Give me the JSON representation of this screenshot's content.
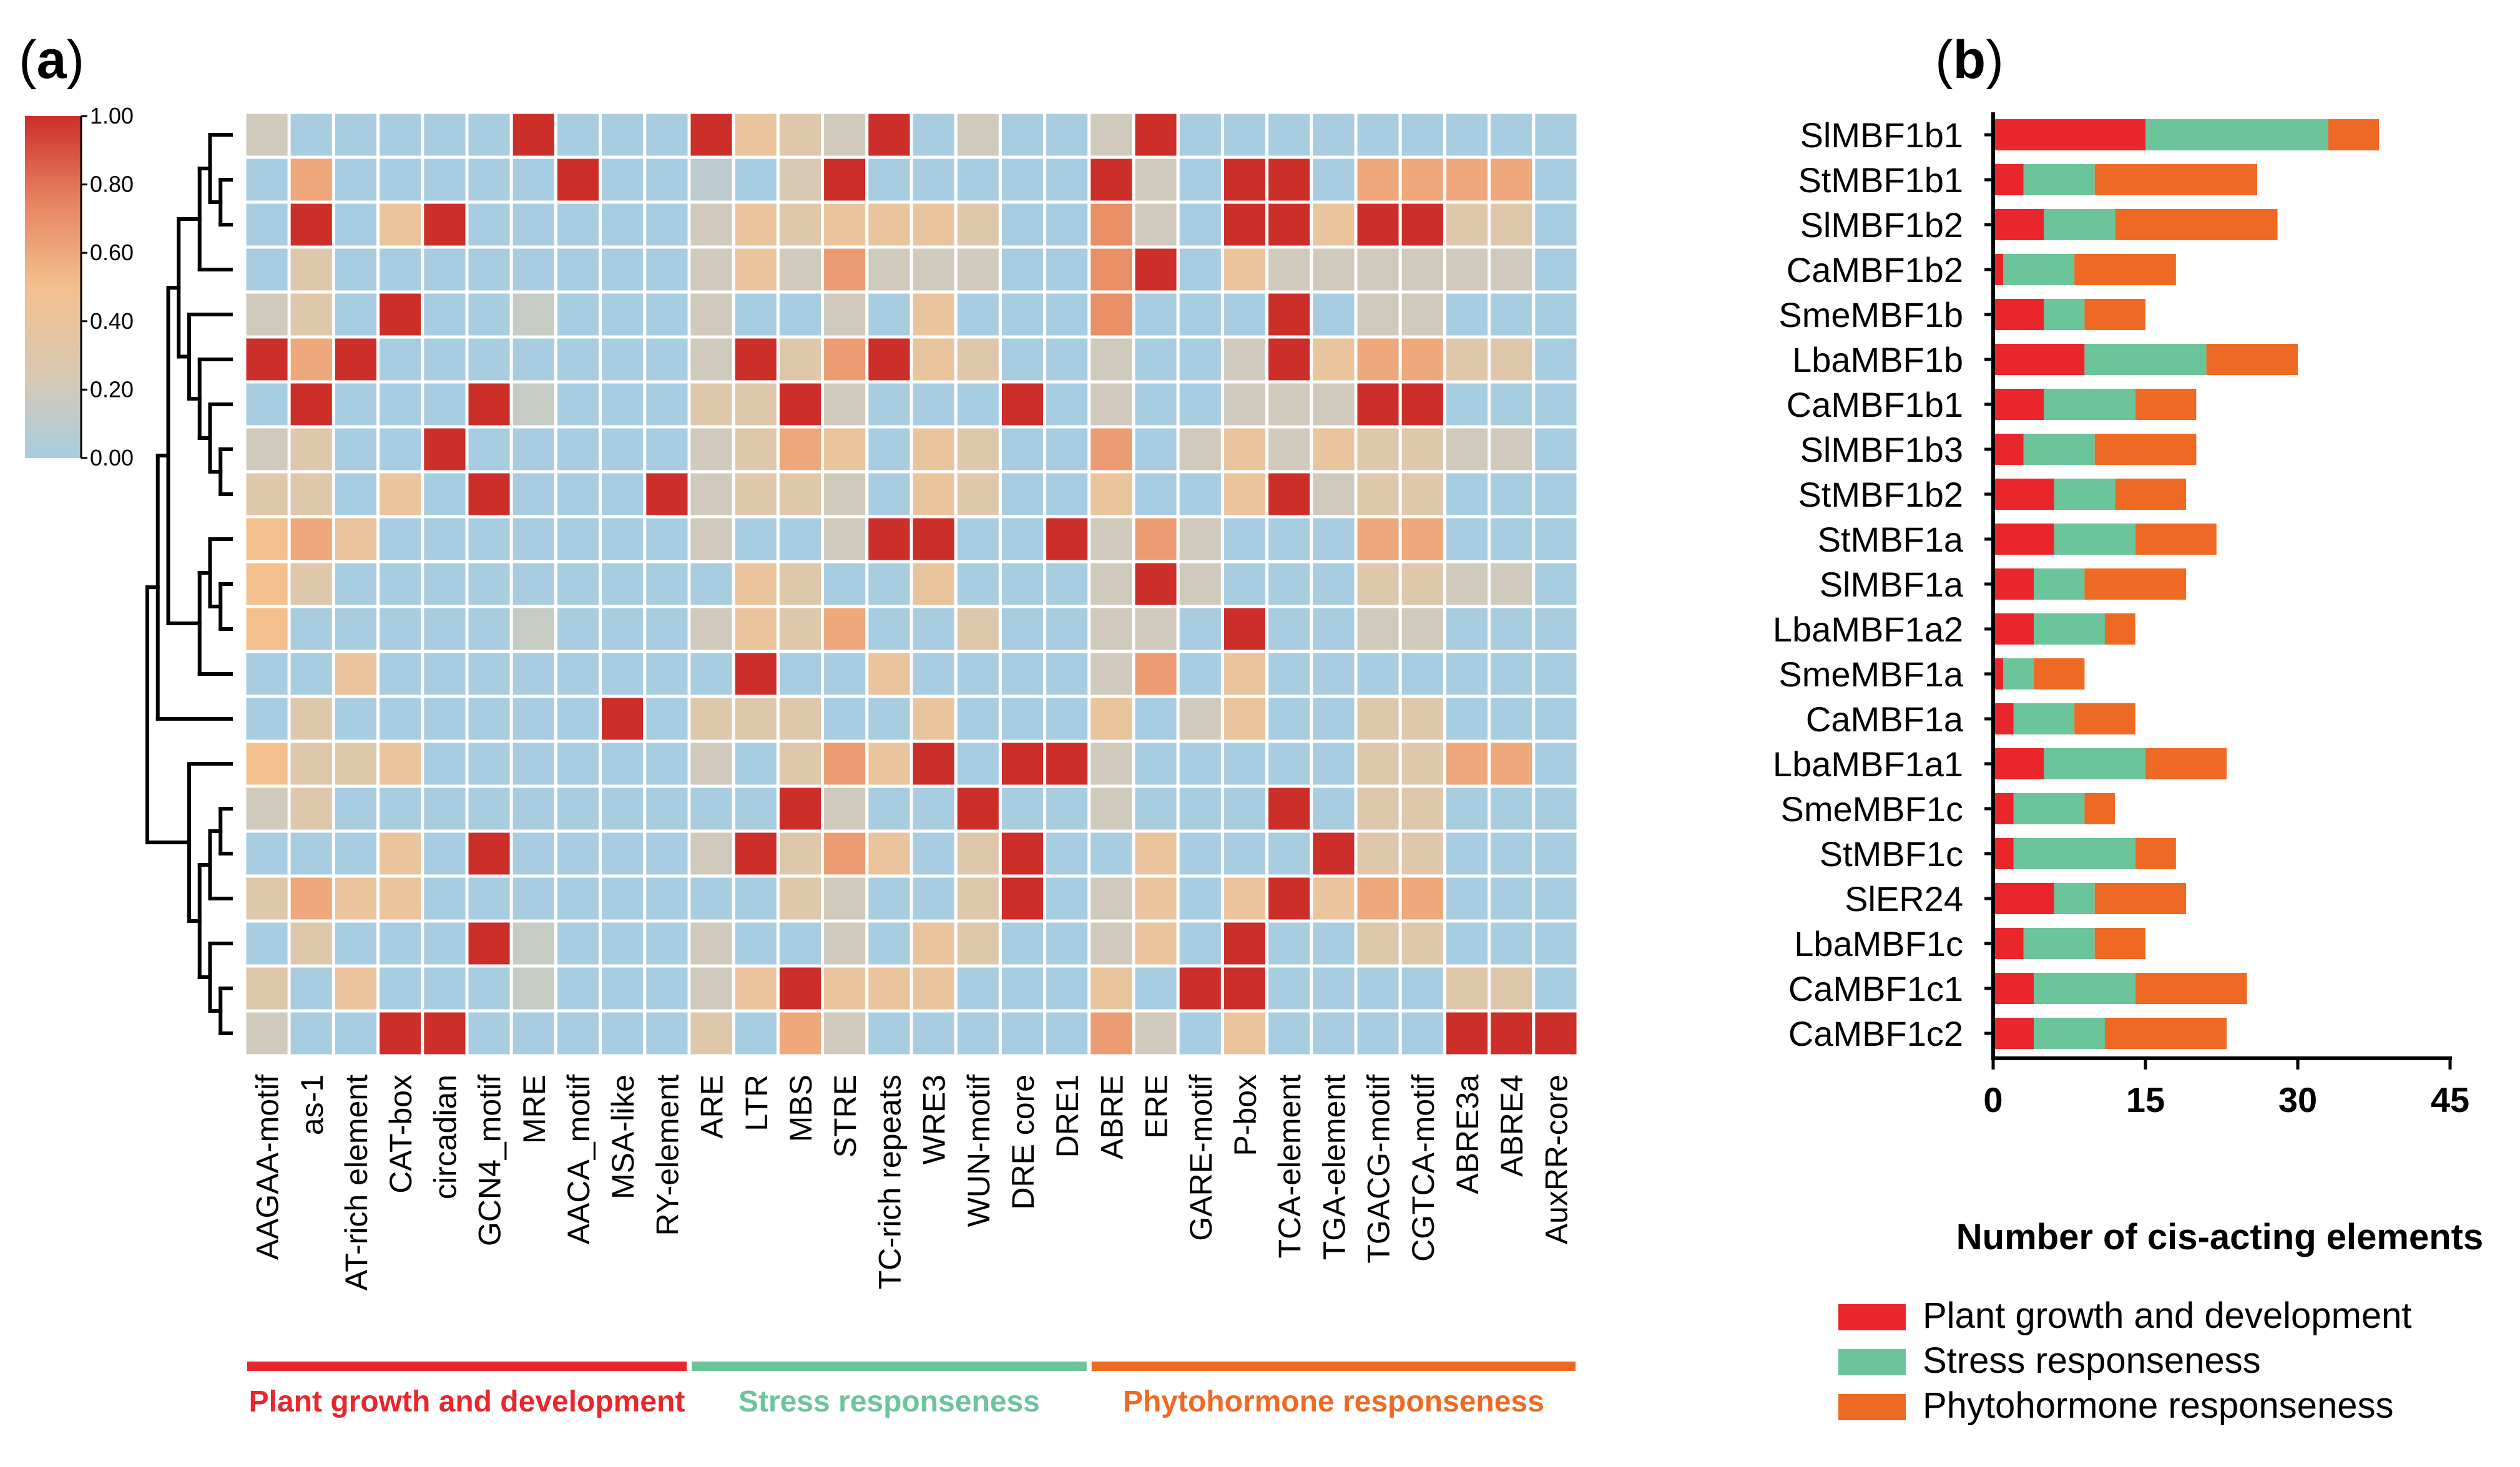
{
  "panels": {
    "a": "a",
    "b": "b"
  },
  "chart_data": [
    {
      "type": "heatmap",
      "title": "",
      "colorbar": {
        "ticks": [
          "1.00",
          "0.80",
          "0.60",
          "0.40",
          "0.20",
          "0.00"
        ],
        "range": [
          0,
          1
        ],
        "colors": [
          "#a9cde0",
          "#d9c9b2",
          "#f3c08d",
          "#e68460",
          "#cc2e2a"
        ]
      },
      "rows": [
        "SlMBF1b1",
        "StMBF1b1",
        "SlMBF1b2",
        "CaMBF1b2",
        "SmeMBF1b",
        "LbaMBF1b",
        "CaMBF1b1",
        "SlMBF1b3",
        "StMBF1b2",
        "StMBF1a",
        "SlMBF1a",
        "LbaMBF1a2",
        "SmeMBF1a",
        "CaMBF1a",
        "LbaMBF1a1",
        "SmeMBF1c",
        "StMBF1c",
        "SlER24",
        "LbaMBF1c",
        "CaMBF1c1",
        "CaMBF1c2"
      ],
      "columns": [
        "AAGAA-motif",
        "as-1",
        "AT-rich element",
        "CAT-box",
        "circadian",
        "GCN4_motif",
        "MRE",
        "AACA_motif",
        "MSA-like",
        "RY-element",
        "ARE",
        "LTR",
        "MBS",
        "STRE",
        "TC-rich repeats",
        "WRE3",
        "WUN-motif",
        "DRE core",
        "DRE1",
        "ABRE",
        "ERE",
        "GARE-motif",
        "P-box",
        "TCA-element",
        "TGA-element",
        "TGACG-motif",
        "CGTCA-motif",
        "ABRE3a",
        "ABRE4",
        "AuxRR-core"
      ],
      "groups": [
        {
          "name": "Plant growth and development",
          "start": 0,
          "end": 9,
          "color": "#e8262b"
        },
        {
          "name": "Stress responseness",
          "start": 10,
          "end": 18,
          "color": "#6cc49b"
        },
        {
          "name": "Phytohormone responseness",
          "start": 19,
          "end": 29,
          "color": "#ee6a24"
        }
      ],
      "values": [
        [
          0.2,
          0,
          0,
          0,
          0,
          0,
          1,
          0,
          0,
          0,
          1,
          0.4,
          0.3,
          0.2,
          1,
          0,
          0.2,
          0,
          0,
          0.2,
          1,
          0,
          0,
          0,
          0,
          0,
          0,
          0,
          0,
          0
        ],
        [
          0,
          0.6,
          0,
          0,
          0,
          0,
          0,
          1,
          0,
          0,
          0.1,
          0,
          0.25,
          1,
          0,
          0,
          0,
          0,
          0,
          1,
          0.2,
          0,
          1,
          1,
          0,
          0.6,
          0.6,
          0.6,
          0.6,
          0
        ],
        [
          0,
          1,
          0,
          0.4,
          1,
          0,
          0,
          0,
          0,
          0,
          0.2,
          0.4,
          0.3,
          0.4,
          0.4,
          0.4,
          0.3,
          0,
          0,
          0.7,
          0.2,
          0,
          1,
          1,
          0.4,
          1,
          1,
          0.3,
          0.3,
          0
        ],
        [
          0,
          0.3,
          0,
          0,
          0,
          0,
          0,
          0,
          0,
          0,
          0.2,
          0.4,
          0.2,
          0.65,
          0.2,
          0.2,
          0.2,
          0,
          0,
          0.7,
          1,
          0,
          0.4,
          0.2,
          0.2,
          0.2,
          0.2,
          0.2,
          0.2,
          0
        ],
        [
          0.2,
          0.3,
          0,
          1,
          0,
          0,
          0.15,
          0,
          0,
          0,
          0.2,
          0,
          0,
          0.2,
          0,
          0.4,
          0,
          0,
          0,
          0.7,
          0,
          0,
          0,
          1,
          0,
          0.2,
          0.2,
          0,
          0,
          0
        ],
        [
          1,
          0.6,
          1,
          0,
          0,
          0,
          0,
          0,
          0,
          0,
          0.2,
          1,
          0.3,
          0.65,
          1,
          0.4,
          0.3,
          0,
          0,
          0.2,
          0,
          0,
          0.2,
          1,
          0.4,
          0.6,
          0.6,
          0.3,
          0.3,
          0
        ],
        [
          0,
          1,
          0,
          0,
          0,
          1,
          0.15,
          0,
          0,
          0,
          0.3,
          0.3,
          1,
          0.2,
          0,
          0,
          0,
          1,
          0,
          0.2,
          0,
          0,
          0.2,
          0.2,
          0.2,
          1,
          1,
          0,
          0,
          0
        ],
        [
          0.2,
          0.3,
          0,
          0,
          1,
          0,
          0,
          0,
          0,
          0,
          0.2,
          0.3,
          0.6,
          0.4,
          0,
          0.4,
          0.3,
          0,
          0,
          0.65,
          0,
          0.2,
          0.4,
          0.2,
          0.4,
          0.3,
          0.3,
          0.2,
          0.2,
          0
        ],
        [
          0.3,
          0.3,
          0,
          0.4,
          0,
          1,
          0,
          0,
          0,
          1,
          0.2,
          0.3,
          0.3,
          0.2,
          0,
          0.4,
          0.3,
          0,
          0,
          0.4,
          0,
          0,
          0.4,
          1,
          0.2,
          0.3,
          0.3,
          0,
          0,
          0
        ],
        [
          0.5,
          0.6,
          0.4,
          0,
          0,
          0,
          0,
          0,
          0,
          0,
          0.2,
          0,
          0,
          0.2,
          1,
          1,
          0,
          0,
          1,
          0.2,
          0.65,
          0.2,
          0,
          0,
          0,
          0.6,
          0.6,
          0,
          0,
          0
        ],
        [
          0.5,
          0.3,
          0,
          0,
          0,
          0,
          0,
          0,
          0,
          0,
          0,
          0.4,
          0.3,
          0,
          0,
          0.4,
          0,
          0,
          0,
          0.2,
          1,
          0.2,
          0,
          0,
          0,
          0.3,
          0.3,
          0.2,
          0.2,
          0
        ],
        [
          0.5,
          0,
          0,
          0,
          0,
          0,
          0.15,
          0,
          0,
          0,
          0.2,
          0.4,
          0.3,
          0.6,
          0,
          0,
          0.3,
          0,
          0,
          0.2,
          0.2,
          0,
          1,
          0,
          0,
          0.2,
          0.2,
          0,
          0,
          0
        ],
        [
          0,
          0,
          0.4,
          0,
          0,
          0,
          0,
          0,
          0,
          0,
          0,
          1,
          0,
          0,
          0.4,
          0,
          0,
          0,
          0,
          0.2,
          0.65,
          0,
          0.4,
          0,
          0,
          0,
          0,
          0,
          0,
          0
        ],
        [
          0,
          0.3,
          0,
          0,
          0,
          0,
          0,
          0,
          1,
          0,
          0.3,
          0.3,
          0.3,
          0,
          0,
          0.4,
          0,
          0,
          0,
          0.4,
          0,
          0.2,
          0.4,
          0,
          0,
          0.3,
          0.3,
          0,
          0,
          0
        ],
        [
          0.5,
          0.3,
          0.3,
          0.4,
          0,
          0,
          0,
          0,
          0,
          0,
          0.2,
          0,
          0.3,
          0.65,
          0.4,
          1,
          0,
          1,
          1,
          0.2,
          0,
          0,
          0,
          0,
          0,
          0.3,
          0.3,
          0.6,
          0.6,
          0
        ],
        [
          0.2,
          0.3,
          0,
          0,
          0,
          0,
          0,
          0,
          0,
          0,
          0,
          0,
          1,
          0.2,
          0,
          0,
          1,
          0,
          0,
          0.2,
          0,
          0,
          0,
          1,
          0,
          0.3,
          0.3,
          0,
          0,
          0
        ],
        [
          0,
          0,
          0,
          0.4,
          0,
          1,
          0,
          0,
          0,
          0,
          0.2,
          1,
          0.3,
          0.65,
          0.4,
          0,
          0.3,
          1,
          0,
          0,
          0.4,
          0,
          0,
          0,
          1,
          0.3,
          0.3,
          0,
          0,
          0
        ],
        [
          0.3,
          0.6,
          0.4,
          0.4,
          0,
          0,
          0,
          0,
          0,
          0,
          0,
          0,
          0.3,
          0.2,
          0,
          0,
          0.3,
          1,
          0,
          0.2,
          0.4,
          0,
          0.4,
          1,
          0.4,
          0.6,
          0.6,
          0,
          0,
          0
        ],
        [
          0,
          0.3,
          0,
          0,
          0,
          1,
          0.15,
          0,
          0,
          0,
          0.2,
          0,
          0,
          0.2,
          0,
          0.4,
          0.3,
          0,
          0,
          0.2,
          0.4,
          0,
          1,
          0,
          0,
          0.3,
          0.3,
          0,
          0,
          0
        ],
        [
          0.3,
          0,
          0.4,
          0,
          0,
          0,
          0.15,
          0,
          0,
          0,
          0.2,
          0.4,
          1,
          0.4,
          0.4,
          0.4,
          0,
          0,
          0,
          0.4,
          0,
          1,
          1,
          0,
          0,
          0,
          0,
          0.3,
          0.3,
          0
        ],
        [
          0.2,
          0,
          0,
          1,
          1,
          0,
          0,
          0,
          0,
          0,
          0.3,
          0,
          0.6,
          0.2,
          0,
          0,
          0,
          0,
          0,
          0.65,
          0.2,
          0,
          0.4,
          0,
          0,
          0,
          0,
          1,
          1,
          1
        ]
      ]
    },
    {
      "type": "bar",
      "orientation": "horizontal",
      "stacked": true,
      "categories": [
        "SlMBF1b1",
        "StMBF1b1",
        "SlMBF1b2",
        "CaMBF1b2",
        "SmeMBF1b",
        "LbaMBF1b",
        "CaMBF1b1",
        "SlMBF1b3",
        "StMBF1b2",
        "StMBF1a",
        "SlMBF1a",
        "LbaMBF1a2",
        "SmeMBF1a",
        "CaMBF1a",
        "LbaMBF1a1",
        "SmeMBF1c",
        "StMBF1c",
        "SlER24",
        "LbaMBF1c",
        "CaMBF1c1",
        "CaMBF1c2"
      ],
      "series": [
        {
          "name": "Plant growth and development",
          "color": "#e8262b",
          "values": [
            15,
            3,
            5,
            1,
            5,
            9,
            5,
            3,
            6,
            6,
            4,
            4,
            1,
            2,
            5,
            2,
            2,
            6,
            3,
            4,
            4
          ]
        },
        {
          "name": "Stress responseness",
          "color": "#6cc49b",
          "values": [
            18,
            7,
            7,
            7,
            4,
            12,
            9,
            7,
            6,
            8,
            5,
            7,
            3,
            6,
            10,
            7,
            12,
            4,
            7,
            10,
            7
          ]
        },
        {
          "name": "Phytohormone responseness",
          "color": "#ee6a24",
          "values": [
            5,
            16,
            16,
            10,
            6,
            9,
            6,
            10,
            7,
            8,
            10,
            3,
            5,
            6,
            8,
            3,
            4,
            9,
            5,
            11,
            12
          ]
        }
      ],
      "xlabel": "Number of cis-acting elements",
      "xlim": [
        0,
        45
      ],
      "xticks": [
        "0",
        "15",
        "30",
        "45"
      ]
    }
  ]
}
